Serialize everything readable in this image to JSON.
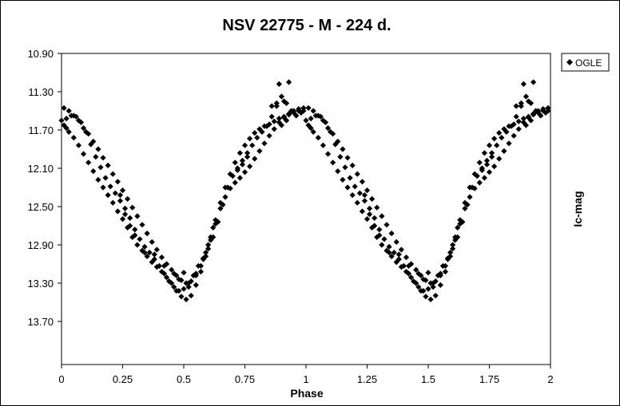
{
  "chart_data": {
    "type": "scatter",
    "title": "NSV 22775 - M - 224 d.",
    "xlabel": "Phase",
    "ylabel": "Ic-mag",
    "xlim": [
      0,
      2
    ],
    "ylim": [
      10.9,
      14.15
    ],
    "y_inverted": true,
    "x_ticks": [
      "0",
      "0.25",
      "0.5",
      "0.75",
      "1",
      "1.25",
      "1.5",
      "1.75",
      "2"
    ],
    "y_ticks": [
      "10.90",
      "11.30",
      "11.70",
      "12.10",
      "12.50",
      "12.90",
      "13.30",
      "13.70"
    ],
    "grid": false,
    "legend_position": "top-right",
    "marker": "diamond",
    "marker_color": "#000000",
    "series": [
      {
        "name": "OGLE",
        "points": [
          [
            0.0,
            11.6
          ],
          [
            0.01,
            11.65
          ],
          [
            0.02,
            11.68
          ],
          [
            0.03,
            11.72
          ],
          [
            0.05,
            11.78
          ],
          [
            0.07,
            11.86
          ],
          [
            0.09,
            11.95
          ],
          [
            0.11,
            12.04
          ],
          [
            0.13,
            12.13
          ],
          [
            0.15,
            12.22
          ],
          [
            0.17,
            12.3
          ],
          [
            0.19,
            12.38
          ],
          [
            0.21,
            12.46
          ],
          [
            0.23,
            12.55
          ],
          [
            0.25,
            12.63
          ],
          [
            0.27,
            12.72
          ],
          [
            0.29,
            12.82
          ],
          [
            0.31,
            12.9
          ],
          [
            0.33,
            12.96
          ],
          [
            0.35,
            13.02
          ],
          [
            0.37,
            13.08
          ],
          [
            0.39,
            13.13
          ],
          [
            0.41,
            13.18
          ],
          [
            0.43,
            13.24
          ],
          [
            0.45,
            13.3
          ],
          [
            0.47,
            13.38
          ],
          [
            0.49,
            13.44
          ],
          [
            0.51,
            13.47
          ],
          [
            0.53,
            13.43
          ],
          [
            0.55,
            13.32
          ],
          [
            0.57,
            13.18
          ],
          [
            0.59,
            13.02
          ],
          [
            0.61,
            12.85
          ],
          [
            0.63,
            12.68
          ],
          [
            0.65,
            12.52
          ],
          [
            0.67,
            12.4
          ],
          [
            0.69,
            12.31
          ],
          [
            0.71,
            12.25
          ],
          [
            0.73,
            12.2
          ],
          [
            0.75,
            12.14
          ],
          [
            0.77,
            12.08
          ],
          [
            0.79,
            12.0
          ],
          [
            0.81,
            11.92
          ],
          [
            0.83,
            11.84
          ],
          [
            0.85,
            11.76
          ],
          [
            0.87,
            11.69
          ],
          [
            0.89,
            11.62
          ],
          [
            0.91,
            11.57
          ],
          [
            0.93,
            11.54
          ],
          [
            0.95,
            11.52
          ],
          [
            0.97,
            11.5
          ],
          [
            0.99,
            11.5
          ],
          [
            0.01,
            11.47
          ],
          [
            0.03,
            11.5
          ],
          [
            0.05,
            11.55
          ],
          [
            0.07,
            11.6
          ],
          [
            0.09,
            11.68
          ],
          [
            0.11,
            11.74
          ],
          [
            0.13,
            11.82
          ],
          [
            0.15,
            11.9
          ],
          [
            0.17,
            11.99
          ],
          [
            0.19,
            12.07
          ],
          [
            0.21,
            12.16
          ],
          [
            0.23,
            12.24
          ],
          [
            0.25,
            12.33
          ],
          [
            0.27,
            12.42
          ],
          [
            0.29,
            12.51
          ],
          [
            0.31,
            12.6
          ],
          [
            0.33,
            12.69
          ],
          [
            0.35,
            12.78
          ],
          [
            0.37,
            12.87
          ],
          [
            0.39,
            12.95
          ],
          [
            0.41,
            13.03
          ],
          [
            0.43,
            13.1
          ],
          [
            0.45,
            13.16
          ],
          [
            0.47,
            13.22
          ],
          [
            0.49,
            13.27
          ],
          [
            0.51,
            13.3
          ],
          [
            0.53,
            13.28
          ],
          [
            0.55,
            13.22
          ],
          [
            0.57,
            13.12
          ],
          [
            0.59,
            12.98
          ],
          [
            0.61,
            12.82
          ],
          [
            0.63,
            12.64
          ],
          [
            0.65,
            12.46
          ],
          [
            0.67,
            12.3
          ],
          [
            0.69,
            12.16
          ],
          [
            0.71,
            12.04
          ],
          [
            0.73,
            11.94
          ],
          [
            0.75,
            11.86
          ],
          [
            0.77,
            11.79
          ],
          [
            0.79,
            11.73
          ],
          [
            0.81,
            11.69
          ],
          [
            0.83,
            11.66
          ],
          [
            0.85,
            11.64
          ],
          [
            0.87,
            11.61
          ],
          [
            0.89,
            11.58
          ],
          [
            0.91,
            11.56
          ],
          [
            0.93,
            11.53
          ],
          [
            0.95,
            11.5
          ],
          [
            0.97,
            11.48
          ],
          [
            0.99,
            11.47
          ],
          [
            0.02,
            11.58
          ],
          [
            0.04,
            11.55
          ],
          [
            0.06,
            11.56
          ],
          [
            0.08,
            11.62
          ],
          [
            0.1,
            11.72
          ],
          [
            0.12,
            11.85
          ],
          [
            0.14,
            11.98
          ],
          [
            0.16,
            12.09
          ],
          [
            0.18,
            12.2
          ],
          [
            0.2,
            12.29
          ],
          [
            0.22,
            12.36
          ],
          [
            0.24,
            12.44
          ],
          [
            0.26,
            12.52
          ],
          [
            0.28,
            12.62
          ],
          [
            0.3,
            12.74
          ],
          [
            0.32,
            12.84
          ],
          [
            0.34,
            12.92
          ],
          [
            0.36,
            12.98
          ],
          [
            0.38,
            13.05
          ],
          [
            0.4,
            13.12
          ],
          [
            0.42,
            13.2
          ],
          [
            0.44,
            13.28
          ],
          [
            0.46,
            13.34
          ],
          [
            0.48,
            13.38
          ],
          [
            0.5,
            13.36
          ],
          [
            0.52,
            13.3
          ],
          [
            0.54,
            13.22
          ],
          [
            0.56,
            13.12
          ],
          [
            0.58,
            13.04
          ],
          [
            0.6,
            12.94
          ],
          [
            0.62,
            12.82
          ],
          [
            0.64,
            12.66
          ],
          [
            0.66,
            12.48
          ],
          [
            0.68,
            12.3
          ],
          [
            0.7,
            12.18
          ],
          [
            0.72,
            12.1
          ],
          [
            0.74,
            12.02
          ],
          [
            0.76,
            11.94
          ],
          [
            0.78,
            11.86
          ],
          [
            0.8,
            11.78
          ],
          [
            0.82,
            11.72
          ],
          [
            0.84,
            11.66
          ],
          [
            0.86,
            11.56
          ],
          [
            0.88,
            11.45
          ],
          [
            0.9,
            11.35
          ],
          [
            0.92,
            11.42
          ],
          [
            0.94,
            11.5
          ],
          [
            0.96,
            11.55
          ],
          [
            0.98,
            11.52
          ],
          [
            0.5,
            13.19
          ],
          [
            0.52,
            13.34
          ],
          [
            0.55,
            13.2
          ],
          [
            0.58,
            13.05
          ],
          [
            0.6,
            12.9
          ],
          [
            0.62,
            12.72
          ],
          [
            0.72,
            12.12
          ],
          [
            0.74,
            12.06
          ],
          [
            0.76,
            11.98
          ],
          [
            0.86,
            11.45
          ],
          [
            0.88,
            11.42
          ],
          [
            0.89,
            11.22
          ],
          [
            0.91,
            11.4
          ],
          [
            0.93,
            11.2
          ],
          [
            0.92,
            11.6
          ],
          [
            0.9,
            11.65
          ],
          [
            0.24,
            12.38
          ],
          [
            0.26,
            12.58
          ],
          [
            0.28,
            12.7
          ],
          [
            0.3,
            12.8
          ],
          [
            0.34,
            12.98
          ],
          [
            0.38,
            13.0
          ],
          [
            0.42,
            13.12
          ],
          [
            0.46,
            13.2
          ],
          [
            0.48,
            13.26
          ]
        ]
      }
    ]
  }
}
